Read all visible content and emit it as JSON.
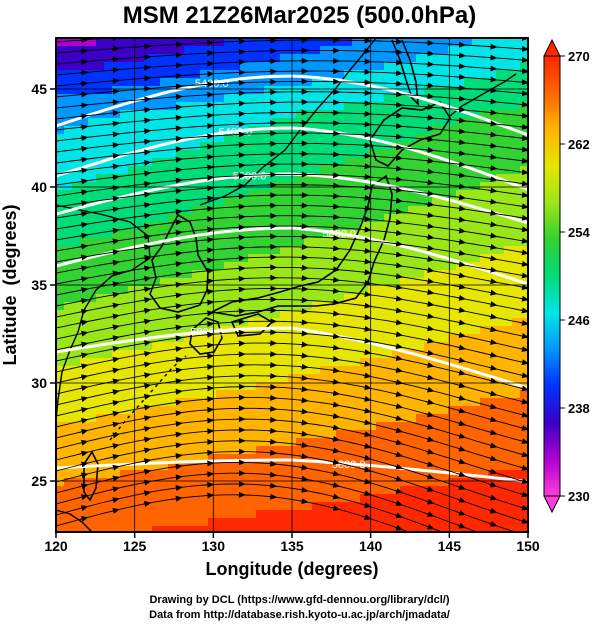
{
  "figure": {
    "title": "MSM 21Z26Mar2025 (500.0hPa)",
    "xlabel": "Longitude (degrees)",
    "ylabel": "Latitude  (degrees)",
    "credit_line1": "Drawing by DCL (https://www.gfd-dennou.org/library/dcl/)",
    "credit_line2": "Data from http://database.rish.kyoto-u.ac.jp/arch/jmadata/"
  },
  "axes": {
    "x_ticks": [
      120,
      125,
      130,
      135,
      140,
      145,
      150
    ],
    "y_ticks": [
      25,
      30,
      35,
      40,
      45
    ],
    "xlim": [
      120,
      150
    ],
    "ylim": [
      22.4,
      47.6
    ]
  },
  "colorbar": {
    "ticks": [
      230,
      238,
      246,
      254,
      262,
      270
    ],
    "range": [
      230,
      270
    ],
    "colors": [
      "#ff3cdc",
      "#b000d0",
      "#3a00c8",
      "#0032ff",
      "#0096ff",
      "#00e6e6",
      "#00dc78",
      "#32d232",
      "#9be619",
      "#e6e600",
      "#ffb400",
      "#ff6400",
      "#ff2800"
    ]
  },
  "contours": {
    "color": "#ffffff",
    "labels": [
      "5400.0",
      "5400.0",
      "5600.0",
      "5800.0",
      "5800.0",
      "5800.0",
      "5900.0"
    ]
  },
  "colors": {
    "coast": "#000000",
    "streamline": "#000000"
  }
}
